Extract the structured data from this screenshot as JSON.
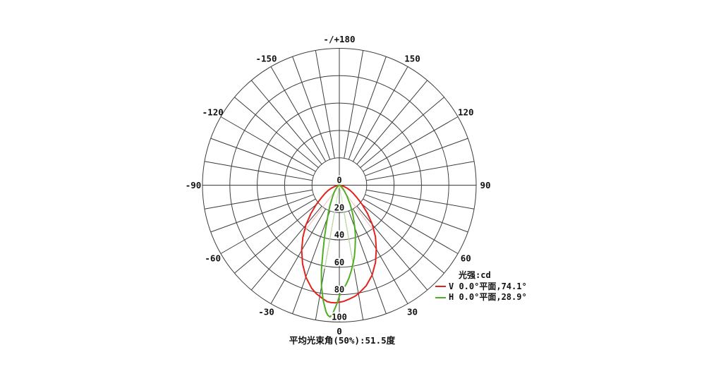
{
  "legend": {
    "title": "光强:cd",
    "items": [
      {
        "label": "V 0.0°平面,74.1°",
        "color": "#e2231d"
      },
      {
        "label": "H 0.0°平面,28.9°",
        "color": "#4fae24"
      }
    ]
  },
  "caption": {
    "text": "平均光束角(50%):51.5度"
  },
  "chart_data": {
    "type": "line",
    "subtype": "polar-photometric",
    "title": "光强:cd",
    "units": "cd",
    "caption": "平均光束角(50%):51.5度",
    "radial_ticks": [
      0,
      20,
      40,
      60,
      80,
      100
    ],
    "radial_range": [
      0,
      100
    ],
    "angle_label_step_deg": 30,
    "grid": {
      "spoke_step_deg": 10,
      "inner_ring_value": 20,
      "color": "#3d3d3d"
    },
    "angle_labels": [
      {
        "deg": 180,
        "text": "-/+180"
      },
      {
        "deg": 150,
        "text": "150"
      },
      {
        "deg": 120,
        "text": "120"
      },
      {
        "deg": 90,
        "text": "90"
      },
      {
        "deg": 60,
        "text": "60"
      },
      {
        "deg": 30,
        "text": "30"
      },
      {
        "deg": 0,
        "text": "0"
      },
      {
        "deg": -30,
        "text": "-30"
      },
      {
        "deg": -60,
        "text": "-60"
      },
      {
        "deg": -90,
        "text": "-90"
      },
      {
        "deg": -120,
        "text": "-120"
      },
      {
        "deg": -150,
        "text": "-150"
      }
    ],
    "series": [
      {
        "name": "V 0.0°平面,74.1°",
        "color": "#e2231d",
        "beam_angle_deg": 74.1,
        "points": [
          [
            -90,
            0
          ],
          [
            -85,
            0.7
          ],
          [
            -80,
            1.8
          ],
          [
            -75,
            3.5
          ],
          [
            -70,
            6
          ],
          [
            -65,
            9
          ],
          [
            -60,
            12
          ],
          [
            -55,
            16
          ],
          [
            -50,
            22
          ],
          [
            -45,
            29.5
          ],
          [
            -40,
            38
          ],
          [
            -35,
            46.5
          ],
          [
            -30,
            55
          ],
          [
            -25,
            63.5
          ],
          [
            -20,
            71.5
          ],
          [
            -15,
            78
          ],
          [
            -12,
            81
          ],
          [
            -10,
            82.5
          ],
          [
            -8,
            84
          ],
          [
            -6,
            85.5
          ],
          [
            -4,
            86
          ],
          [
            -2,
            86
          ],
          [
            0,
            85.5
          ],
          [
            2,
            85
          ],
          [
            5,
            83.5
          ],
          [
            8,
            82
          ],
          [
            10,
            80.5
          ],
          [
            15,
            76
          ],
          [
            20,
            70
          ],
          [
            25,
            62.5
          ],
          [
            30,
            54
          ],
          [
            35,
            46
          ],
          [
            40,
            37.5
          ],
          [
            45,
            29
          ],
          [
            50,
            21.5
          ],
          [
            55,
            15.5
          ],
          [
            60,
            11.5
          ],
          [
            65,
            8.5
          ],
          [
            70,
            5.5
          ],
          [
            75,
            3.3
          ],
          [
            80,
            1.7
          ],
          [
            85,
            0.6
          ],
          [
            90,
            0
          ]
        ]
      },
      {
        "name": "H 0.0°平面,28.9°",
        "color": "#4fae24",
        "beam_angle_deg": 28.9,
        "points": [
          [
            -90,
            0
          ],
          [
            -80,
            0.2
          ],
          [
            -70,
            0.5
          ],
          [
            -60,
            1
          ],
          [
            -50,
            2
          ],
          [
            -45,
            3
          ],
          [
            -40,
            4.5
          ],
          [
            -35,
            7
          ],
          [
            -30,
            10
          ],
          [
            -25,
            16
          ],
          [
            -22,
            21
          ],
          [
            -20,
            25
          ],
          [
            -18,
            31
          ],
          [
            -16,
            39
          ],
          [
            -14,
            49
          ],
          [
            -12,
            63
          ],
          [
            -10,
            75
          ],
          [
            -8,
            85
          ],
          [
            -6,
            93
          ],
          [
            -5,
            95.5
          ],
          [
            -4,
            96.5
          ],
          [
            -3,
            94
          ],
          [
            -2,
            90
          ],
          [
            -1,
            86
          ],
          [
            0,
            81
          ],
          [
            1,
            78
          ],
          [
            2,
            76
          ],
          [
            4,
            72.5
          ],
          [
            6,
            68
          ],
          [
            8,
            63
          ],
          [
            10,
            58
          ],
          [
            12,
            53
          ],
          [
            14,
            47.5
          ],
          [
            16,
            42.5
          ],
          [
            18,
            38
          ],
          [
            20,
            33
          ],
          [
            22,
            28.5
          ],
          [
            25,
            23
          ],
          [
            28,
            18
          ],
          [
            30,
            15
          ],
          [
            35,
            9.5
          ],
          [
            40,
            6
          ],
          [
            45,
            4
          ],
          [
            50,
            2.5
          ],
          [
            60,
            1
          ],
          [
            70,
            0.5
          ],
          [
            80,
            0.2
          ],
          [
            90,
            0
          ]
        ]
      }
    ],
    "beam_half_angle_lines": [
      {
        "color": "#f5bcb8",
        "angles_deg": [
          -37,
          37
        ],
        "length_cd": 43
      },
      {
        "color": "#c6e6ab",
        "angles_deg": [
          -10,
          10
        ],
        "length_cd": 62
      }
    ]
  }
}
